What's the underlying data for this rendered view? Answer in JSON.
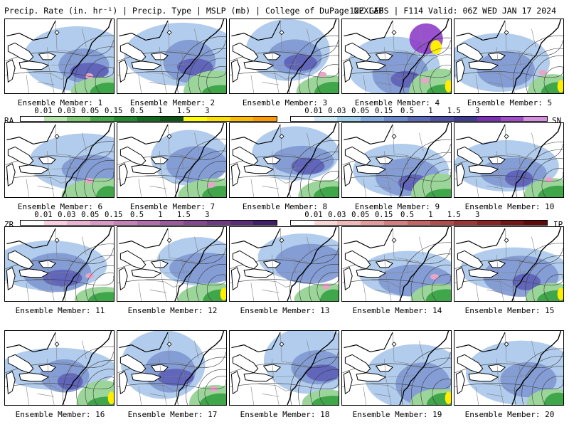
{
  "header": {
    "left": "Precip. Rate (in. hr⁻¹) | Precip. Type | MSLP (mb) | College of DuPage NEXLAB",
    "right": "12Z GEFS | F114 Valid: 06Z WED JAN 17 2024"
  },
  "member_prefix": "Ensemble Member:",
  "members": [
    {
      "num": "1",
      "label": "Ensemble Member: 1"
    },
    {
      "num": "2",
      "label": "Ensemble Member: 2"
    },
    {
      "num": "3",
      "label": "Ensemble Member: 3"
    },
    {
      "num": "4",
      "label": "Ensemble Member: 4"
    },
    {
      "num": "5",
      "label": "Ensemble Member: 5"
    },
    {
      "num": "6",
      "label": "Ensemble Member: 6"
    },
    {
      "num": "7",
      "label": "Ensemble Member: 7"
    },
    {
      "num": "8",
      "label": "Ensemble Member: 8"
    },
    {
      "num": "9",
      "label": "Ensemble Member: 9"
    },
    {
      "num": "10",
      "label": "Ensemble Member: 10"
    },
    {
      "num": "11",
      "label": "Ensemble Member: 11"
    },
    {
      "num": "12",
      "label": "Ensemble Member: 12"
    },
    {
      "num": "13",
      "label": "Ensemble Member: 13"
    },
    {
      "num": "14",
      "label": "Ensemble Member: 14"
    },
    {
      "num": "15",
      "label": "Ensemble Member: 15"
    },
    {
      "num": "16",
      "label": "Ensemble Member: 16"
    },
    {
      "num": "17",
      "label": "Ensemble Member: 17"
    },
    {
      "num": "18",
      "label": "Ensemble Member: 18"
    },
    {
      "num": "19",
      "label": "Ensemble Member: 19"
    },
    {
      "num": "20",
      "label": "Ensemble Member: 20"
    }
  ],
  "legends": {
    "ra": {
      "type": "RA",
      "ticks": [
        "0.01",
        "0.03",
        "0.05",
        "0.15",
        "0.5",
        "1",
        "1.5",
        "3"
      ],
      "colors": [
        "#ffffff",
        "#b7e4ad",
        "#7ccb72",
        "#42a845",
        "#1f8a2c",
        "#0e6e1e",
        "#0a5514",
        "#ffff00",
        "#ffe000",
        "#ffbb00",
        "#ff9900"
      ]
    },
    "sn": {
      "type": "SN",
      "ticks": [
        "0.01",
        "0.03",
        "0.05",
        "0.15",
        "0.5",
        "1",
        "1.5",
        "3"
      ],
      "colors": [
        "#ffffff",
        "#cfe8f6",
        "#9fcbea",
        "#7fa8dc",
        "#6c88cc",
        "#5b6ab9",
        "#4d4fa6",
        "#3e3b92",
        "#7b2fb8",
        "#a24bcc",
        "#d590e0"
      ]
    },
    "zr": {
      "type": "ZR",
      "ticks": [
        "0.01",
        "0.03",
        "0.05",
        "0.15",
        "0.5",
        "1",
        "1.5",
        "3"
      ],
      "colors": [
        "#ffffff",
        "#f7cfe0",
        "#e8b4d2",
        "#d79ac6",
        "#c582b8",
        "#b06cab",
        "#9a5a9e",
        "#84488f",
        "#6e3a82",
        "#5a2d77",
        "#3f1f66"
      ]
    },
    "ip": {
      "type": "IP",
      "ticks": [
        "0.01",
        "0.03",
        "0.05",
        "0.15",
        "0.5",
        "1",
        "1.5",
        "3"
      ],
      "colors": [
        "#ffffff",
        "#f9d6d6",
        "#f0b9b9",
        "#e39c9c",
        "#d47f7f",
        "#c46565",
        "#b04c4c",
        "#9b3737",
        "#872424",
        "#721616",
        "#5c0a0a"
      ]
    }
  },
  "colors": {
    "snow_light": "#a9c6ea",
    "snow_mid": "#7f98d2",
    "snow_heavy": "#5d61b8",
    "snow_band": "#8f3ec9",
    "rain_light": "#9cd59a",
    "rain_mid": "#3fa64a",
    "rain_heavy": "#13722a",
    "rain_core": "#ffee00",
    "mix": "#e7a6c8",
    "land": "#ffffff",
    "border": "#000000",
    "isobar": "#3b3b3b"
  }
}
